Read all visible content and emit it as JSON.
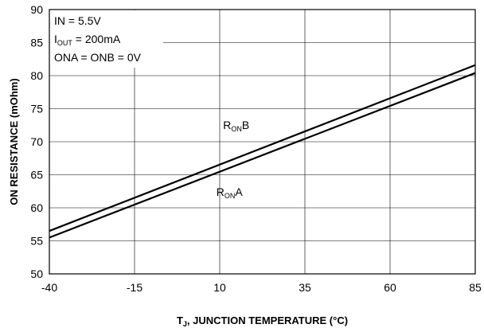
{
  "chart_data": {
    "type": "line",
    "x_ticks": [
      "-40",
      "-15",
      "10",
      "35",
      "60",
      "85"
    ],
    "y_ticks": [
      "50",
      "55",
      "60",
      "65",
      "70",
      "75",
      "80",
      "85",
      "90"
    ],
    "xlim": [
      -40,
      85
    ],
    "ylim": [
      50,
      90
    ],
    "grid": true,
    "xlabel": {
      "main": "T",
      "sub": "J",
      "rest": ", JUNCTION TEMPERATURE (°C)"
    },
    "ylabel": "ON RESISTANCE (mOhm)",
    "conditions": [
      {
        "main": "IN = 5.5V",
        "sub": "",
        "rest": ""
      },
      {
        "main": "I",
        "sub": "OUT",
        "rest": " = 200mA"
      },
      {
        "main": "ONA = ONB = 0V",
        "sub": "",
        "rest": ""
      }
    ],
    "series": [
      {
        "label": {
          "main": "R",
          "sub": "ON",
          "rest": "B"
        },
        "x": [
          -40,
          85
        ],
        "y": [
          56.5,
          81.6
        ]
      },
      {
        "label": {
          "main": "R",
          "sub": "ON",
          "rest": "A"
        },
        "x": [
          -40,
          85
        ],
        "y": [
          55.5,
          80.4
        ]
      }
    ]
  }
}
